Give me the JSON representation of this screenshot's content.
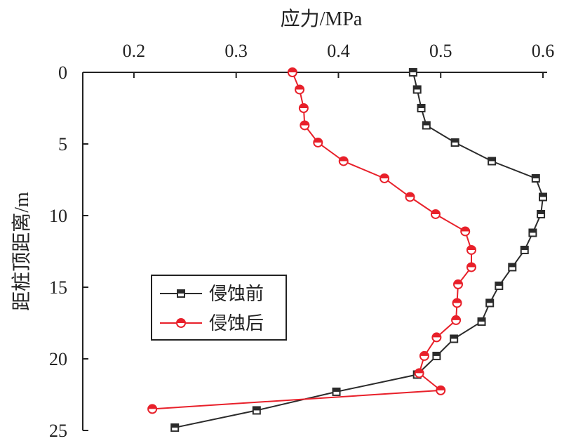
{
  "chart_data": {
    "type": "line",
    "xlabel": "应力/MPa",
    "ylabel": "距桩顶距离/m",
    "x_axis_position": "top",
    "y_inverted": true,
    "xlim": [
      0.15,
      0.6
    ],
    "ylim": [
      0,
      25
    ],
    "x_ticks": [
      "0.2",
      "0.3",
      "0.4",
      "0.5",
      "0.6"
    ],
    "y_ticks": [
      "0",
      "5",
      "10",
      "15",
      "20",
      "25"
    ],
    "legend_position": "middle-left",
    "series": [
      {
        "name": "侵蚀前",
        "color": "#2b2b2b",
        "marker": "square",
        "points": [
          {
            "x": 0.473,
            "y": 0.0
          },
          {
            "x": 0.477,
            "y": 1.2
          },
          {
            "x": 0.481,
            "y": 2.5
          },
          {
            "x": 0.486,
            "y": 3.7
          },
          {
            "x": 0.514,
            "y": 4.9
          },
          {
            "x": 0.55,
            "y": 6.2
          },
          {
            "x": 0.593,
            "y": 7.4
          },
          {
            "x": 0.6,
            "y": 8.7
          },
          {
            "x": 0.598,
            "y": 9.9
          },
          {
            "x": 0.59,
            "y": 11.2
          },
          {
            "x": 0.582,
            "y": 12.4
          },
          {
            "x": 0.57,
            "y": 13.6
          },
          {
            "x": 0.557,
            "y": 14.9
          },
          {
            "x": 0.548,
            "y": 16.1
          },
          {
            "x": 0.54,
            "y": 17.4
          },
          {
            "x": 0.513,
            "y": 18.6
          },
          {
            "x": 0.496,
            "y": 19.8
          },
          {
            "x": 0.477,
            "y": 21.1
          },
          {
            "x": 0.398,
            "y": 22.3
          },
          {
            "x": 0.32,
            "y": 23.6
          },
          {
            "x": 0.24,
            "y": 24.8
          }
        ]
      },
      {
        "name": "侵蚀后",
        "color": "#e8202a",
        "marker": "half-filled-circle",
        "points": [
          {
            "x": 0.355,
            "y": 0.0
          },
          {
            "x": 0.362,
            "y": 1.2
          },
          {
            "x": 0.366,
            "y": 2.5
          },
          {
            "x": 0.367,
            "y": 3.7
          },
          {
            "x": 0.38,
            "y": 4.9
          },
          {
            "x": 0.405,
            "y": 6.2
          },
          {
            "x": 0.445,
            "y": 7.4
          },
          {
            "x": 0.47,
            "y": 8.7
          },
          {
            "x": 0.495,
            "y": 9.9
          },
          {
            "x": 0.524,
            "y": 11.1
          },
          {
            "x": 0.53,
            "y": 12.4
          },
          {
            "x": 0.53,
            "y": 13.6
          },
          {
            "x": 0.517,
            "y": 14.8
          },
          {
            "x": 0.516,
            "y": 16.1
          },
          {
            "x": 0.515,
            "y": 17.3
          },
          {
            "x": 0.496,
            "y": 18.5
          },
          {
            "x": 0.484,
            "y": 19.8
          },
          {
            "x": 0.479,
            "y": 21.0
          },
          {
            "x": 0.5,
            "y": 22.2
          },
          {
            "x": 0.218,
            "y": 23.5
          }
        ]
      }
    ]
  }
}
